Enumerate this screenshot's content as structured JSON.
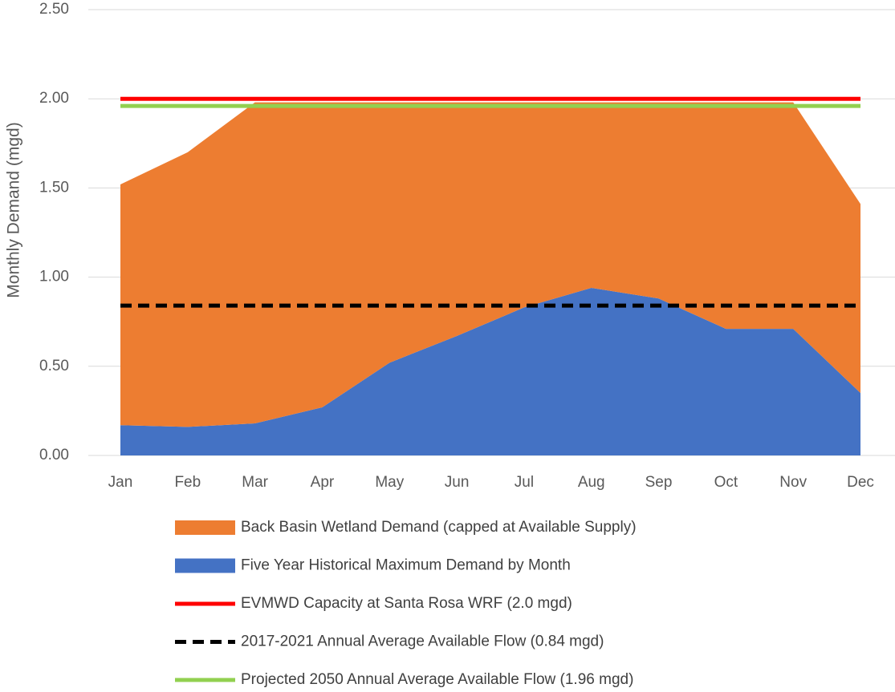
{
  "chart_data": {
    "type": "stacked_area",
    "y_label": "Monthly Demand (mgd)",
    "categories": [
      "Jan",
      "Feb",
      "Mar",
      "Apr",
      "May",
      "Jun",
      "Jul",
      "Aug",
      "Sep",
      "Oct",
      "Nov",
      "Dec"
    ],
    "series": [
      {
        "name": "Five Year Historical Maximum Demand by Month",
        "color": "#4472c4",
        "values": [
          0.17,
          0.16,
          0.18,
          0.27,
          0.52,
          0.67,
          0.83,
          0.94,
          0.88,
          0.71,
          0.71,
          0.35
        ]
      },
      {
        "name": "Back Basin Wetland Demand (capped at Available Supply)",
        "color": "#ed7d31",
        "values": [
          1.35,
          1.54,
          1.8,
          1.71,
          1.46,
          1.31,
          1.15,
          1.04,
          1.1,
          1.27,
          1.27,
          1.06
        ]
      }
    ],
    "lines": [
      {
        "name": "EVMWD Capacity at Santa Rosa WRF (2.0 mgd)",
        "color": "#ff0000",
        "value": 2.0,
        "dashed": false
      },
      {
        "name": "2017-2021 Annual Average Available Flow (0.84 mgd)",
        "color": "#000000",
        "value": 0.84,
        "dashed": true
      },
      {
        "name": "Projected 2050 Annual Average Available Flow (1.96 mgd)",
        "color": "#92d050",
        "value": 1.96,
        "dashed": false
      }
    ],
    "ylim": [
      0,
      2.5
    ],
    "yticks": [
      {
        "value": 0,
        "label": "0.00"
      },
      {
        "value": 0.5,
        "label": "0.50"
      },
      {
        "value": 1,
        "label": "1.00"
      },
      {
        "value": 1.5,
        "label": "1.50"
      },
      {
        "value": 2,
        "label": "2.00"
      },
      {
        "value": 2.5,
        "label": "2.50"
      }
    ],
    "grid": true
  }
}
